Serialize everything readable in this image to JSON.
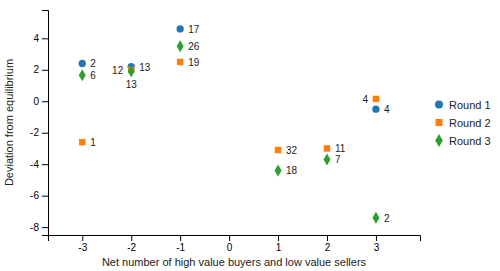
{
  "chart_data": {
    "type": "scatter",
    "xlabel": "Net number of high value buyers and low value sellers",
    "ylabel": "Deviation from equilibrium",
    "xlim": [
      -3.7,
      3.9
    ],
    "ylim": [
      -8.5,
      5.8
    ],
    "xticks": [
      -3,
      -2,
      -1,
      0,
      1,
      2,
      3
    ],
    "yticks": [
      -8,
      -6,
      -4,
      -2,
      0,
      2,
      4
    ],
    "legend": "right",
    "series": [
      {
        "name": "Round 1",
        "marker": "circle",
        "x": [
          -3,
          -2,
          -1,
          3
        ],
        "values": [
          2.4,
          2.2,
          4.6,
          -0.5
        ],
        "labels": [
          "2",
          "13",
          "17",
          "4"
        ]
      },
      {
        "name": "Round 2",
        "marker": "square",
        "x": [
          -3,
          -2,
          -1,
          1,
          2,
          3
        ],
        "values": [
          -2.6,
          2.0,
          2.5,
          -3.1,
          -3.0,
          0.15
        ],
        "labels": [
          "1",
          "12",
          "19",
          "32",
          "11",
          "4"
        ]
      },
      {
        "name": "Round 3",
        "marker": "diamond",
        "x": [
          -3,
          -2,
          -1,
          1,
          2,
          3
        ],
        "values": [
          1.65,
          1.9,
          3.5,
          -4.4,
          -3.7,
          -7.4
        ],
        "labels": [
          "6",
          "13",
          "26",
          "18",
          "7",
          "2"
        ]
      }
    ]
  }
}
